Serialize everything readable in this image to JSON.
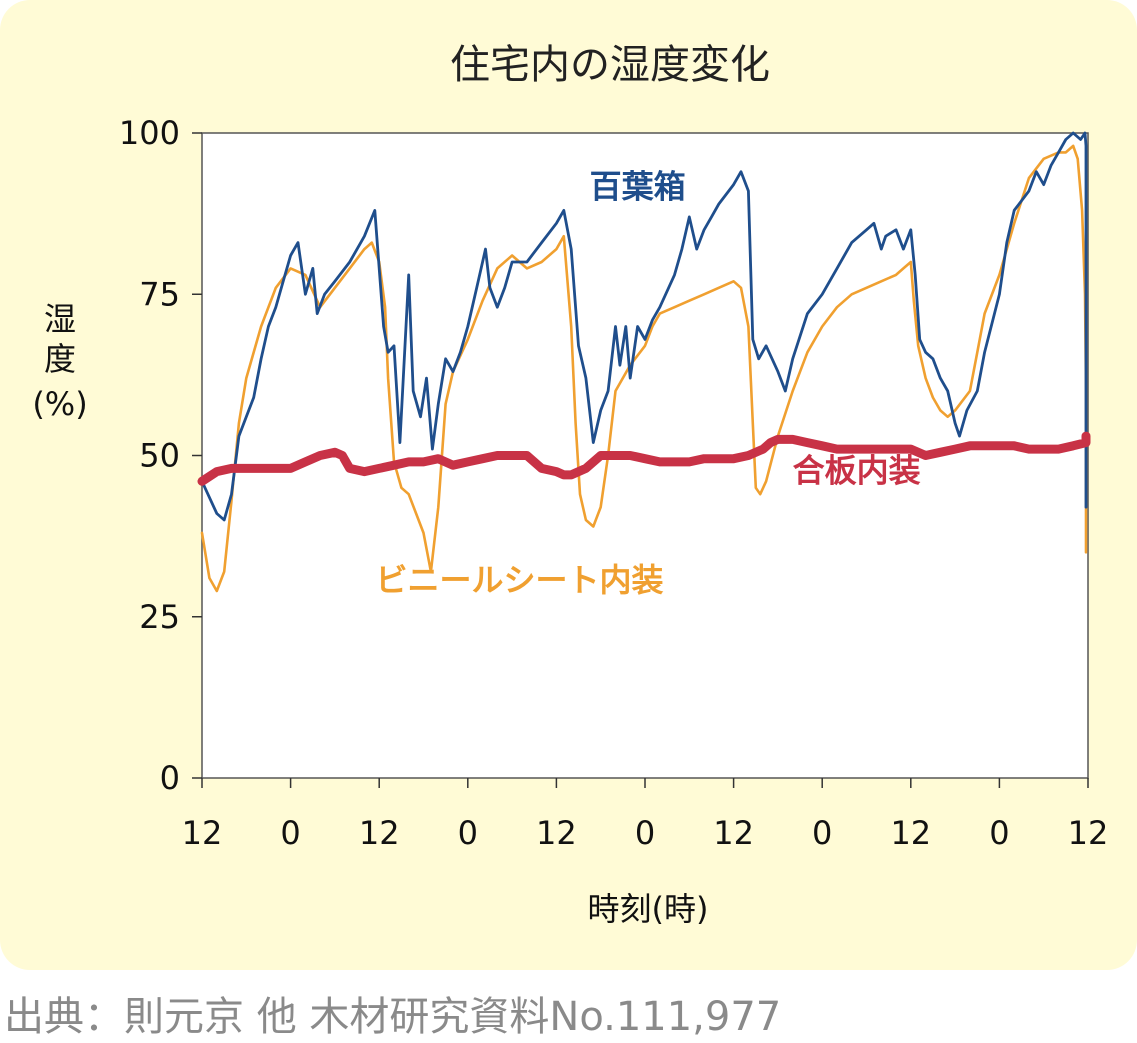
{
  "chart_data": {
    "type": "line",
    "title": "住宅内の湿度変化",
    "xlabel": "時刻(時)",
    "ylabel": [
      "湿",
      "度",
      "(%)"
    ],
    "ylim": [
      0,
      100
    ],
    "yticks": [
      0,
      25,
      50,
      75,
      100
    ],
    "xlim": [
      0,
      60
    ],
    "xticks": [
      {
        "x": 0,
        "label": "12"
      },
      {
        "x": 6,
        "label": "0"
      },
      {
        "x": 12,
        "label": "12"
      },
      {
        "x": 18,
        "label": "0"
      },
      {
        "x": 24,
        "label": "12"
      },
      {
        "x": 30,
        "label": "0"
      },
      {
        "x": 36,
        "label": "12"
      },
      {
        "x": 42,
        "label": "0"
      },
      {
        "x": 48,
        "label": "12"
      },
      {
        "x": 54,
        "label": "0"
      },
      {
        "x": 60,
        "label": "12"
      }
    ],
    "grid": false,
    "series": [
      {
        "name": "百葉箱",
        "color": "#1f4e8c",
        "label_pos": [
          29.5,
          90
        ],
        "points": [
          [
            0,
            46
          ],
          [
            1,
            41
          ],
          [
            1.5,
            40
          ],
          [
            2,
            44
          ],
          [
            2.5,
            53
          ],
          [
            3,
            56
          ],
          [
            3.5,
            59
          ],
          [
            4,
            65
          ],
          [
            4.5,
            70
          ],
          [
            5,
            73
          ],
          [
            5.5,
            77
          ],
          [
            6,
            81
          ],
          [
            6.5,
            83
          ],
          [
            7,
            75
          ],
          [
            7.5,
            79
          ],
          [
            7.8,
            72
          ],
          [
            8.3,
            75
          ],
          [
            9,
            77
          ],
          [
            10,
            80
          ],
          [
            11,
            84
          ],
          [
            11.7,
            88
          ],
          [
            12.3,
            70
          ],
          [
            12.6,
            66
          ],
          [
            13,
            67
          ],
          [
            13.4,
            52
          ],
          [
            14,
            78
          ],
          [
            14.3,
            60
          ],
          [
            14.8,
            56
          ],
          [
            15.2,
            62
          ],
          [
            15.6,
            51
          ],
          [
            16,
            58
          ],
          [
            16.5,
            65
          ],
          [
            17,
            63
          ],
          [
            17.5,
            66
          ],
          [
            18,
            70
          ],
          [
            18.6,
            76
          ],
          [
            19.2,
            82
          ],
          [
            19.5,
            76
          ],
          [
            20,
            73
          ],
          [
            20.5,
            76
          ],
          [
            21,
            80
          ],
          [
            22,
            80
          ],
          [
            23,
            83
          ],
          [
            24,
            86
          ],
          [
            24.5,
            88
          ],
          [
            25,
            82
          ],
          [
            25.5,
            67
          ],
          [
            26,
            62
          ],
          [
            26.5,
            52
          ],
          [
            27,
            57
          ],
          [
            27.5,
            60
          ],
          [
            28,
            70
          ],
          [
            28.3,
            64
          ],
          [
            28.7,
            70
          ],
          [
            29,
            62
          ],
          [
            29.5,
            70
          ],
          [
            30,
            68
          ],
          [
            30.5,
            71
          ],
          [
            31,
            73
          ],
          [
            32,
            78
          ],
          [
            32.5,
            82
          ],
          [
            33,
            87
          ],
          [
            33.5,
            82
          ],
          [
            34,
            85
          ],
          [
            34.5,
            87
          ],
          [
            35,
            89
          ],
          [
            36,
            92
          ],
          [
            36.5,
            94
          ],
          [
            37,
            91
          ],
          [
            37.3,
            68
          ],
          [
            37.7,
            65
          ],
          [
            38.2,
            67
          ],
          [
            39,
            63
          ],
          [
            39.5,
            60
          ],
          [
            40,
            65
          ],
          [
            41,
            72
          ],
          [
            42,
            75
          ],
          [
            43,
            79
          ],
          [
            44,
            83
          ],
          [
            45,
            85
          ],
          [
            45.5,
            86
          ],
          [
            46,
            82
          ],
          [
            46.3,
            84
          ],
          [
            47,
            85
          ],
          [
            47.5,
            82
          ],
          [
            48,
            85
          ],
          [
            48.3,
            78
          ],
          [
            48.6,
            68
          ],
          [
            49,
            66
          ],
          [
            49.5,
            65
          ],
          [
            50,
            62
          ],
          [
            50.5,
            60
          ],
          [
            51,
            55
          ],
          [
            51.3,
            53
          ],
          [
            51.8,
            57
          ],
          [
            52.5,
            60
          ],
          [
            53,
            66
          ],
          [
            54,
            75
          ],
          [
            54.5,
            83
          ],
          [
            55,
            88
          ],
          [
            56,
            91
          ],
          [
            56.5,
            94
          ],
          [
            57,
            92
          ],
          [
            57.5,
            95
          ],
          [
            58,
            97
          ],
          [
            58.5,
            99
          ],
          [
            59,
            100
          ],
          [
            59.5,
            99
          ],
          [
            59.8,
            100
          ],
          [
            60,
            98
          ],
          [
            60.2,
            94
          ],
          [
            60.3,
            80
          ],
          [
            60.4,
            60
          ],
          [
            60.5,
            42
          ]
        ]
      },
      {
        "name": "ビニールシート内装",
        "color": "#f0a030",
        "label_pos": [
          21.5,
          29
        ],
        "points": [
          [
            0,
            38
          ],
          [
            0.5,
            31
          ],
          [
            1,
            29
          ],
          [
            1.5,
            32
          ],
          [
            2,
            43
          ],
          [
            2.5,
            55
          ],
          [
            3,
            62
          ],
          [
            4,
            70
          ],
          [
            5,
            76
          ],
          [
            6,
            79
          ],
          [
            7,
            78
          ],
          [
            8,
            73
          ],
          [
            9,
            76
          ],
          [
            10,
            79
          ],
          [
            11,
            82
          ],
          [
            11.5,
            83
          ],
          [
            12,
            80
          ],
          [
            12.4,
            73
          ],
          [
            12.6,
            62
          ],
          [
            13,
            49
          ],
          [
            13.5,
            45
          ],
          [
            14,
            44
          ],
          [
            14.5,
            41
          ],
          [
            15,
            38
          ],
          [
            15.5,
            32
          ],
          [
            16,
            42
          ],
          [
            16.5,
            58
          ],
          [
            17,
            63
          ],
          [
            18,
            68
          ],
          [
            19,
            74
          ],
          [
            20,
            79
          ],
          [
            21,
            81
          ],
          [
            22,
            79
          ],
          [
            23,
            80
          ],
          [
            24,
            82
          ],
          [
            24.5,
            84
          ],
          [
            25,
            70
          ],
          [
            25.3,
            55
          ],
          [
            25.6,
            44
          ],
          [
            26,
            40
          ],
          [
            26.5,
            39
          ],
          [
            27,
            42
          ],
          [
            27.5,
            50
          ],
          [
            28,
            60
          ],
          [
            29,
            64
          ],
          [
            30,
            67
          ],
          [
            30.5,
            70
          ],
          [
            31,
            72
          ],
          [
            32,
            73
          ],
          [
            33,
            74
          ],
          [
            34,
            75
          ],
          [
            35,
            76
          ],
          [
            36,
            77
          ],
          [
            36.5,
            76
          ],
          [
            37,
            70
          ],
          [
            37.3,
            55
          ],
          [
            37.5,
            45
          ],
          [
            37.8,
            44
          ],
          [
            38.2,
            46
          ],
          [
            39,
            53
          ],
          [
            40,
            60
          ],
          [
            41,
            66
          ],
          [
            42,
            70
          ],
          [
            43,
            73
          ],
          [
            44,
            75
          ],
          [
            45,
            76
          ],
          [
            46,
            77
          ],
          [
            47,
            78
          ],
          [
            47.5,
            79
          ],
          [
            48,
            80
          ],
          [
            48.2,
            74
          ],
          [
            48.5,
            67
          ],
          [
            49,
            62
          ],
          [
            49.5,
            59
          ],
          [
            50,
            57
          ],
          [
            50.5,
            56
          ],
          [
            51,
            57
          ],
          [
            52,
            60
          ],
          [
            52.5,
            66
          ],
          [
            53,
            72
          ],
          [
            54,
            78
          ],
          [
            55,
            86
          ],
          [
            56,
            93
          ],
          [
            57,
            96
          ],
          [
            58,
            97
          ],
          [
            58.5,
            97
          ],
          [
            59,
            98
          ],
          [
            59.3,
            96
          ],
          [
            59.6,
            88
          ],
          [
            59.8,
            75
          ],
          [
            60,
            60
          ],
          [
            60.2,
            48
          ],
          [
            60.5,
            42
          ],
          [
            61,
            37
          ],
          [
            61.3,
            35
          ]
        ]
      },
      {
        "name": "合板内装",
        "color": "#c83246",
        "label_pos": [
          40,
          46
        ],
        "points": [
          [
            0,
            46
          ],
          [
            1,
            47.5
          ],
          [
            2,
            48
          ],
          [
            3,
            48
          ],
          [
            4,
            48
          ],
          [
            5,
            48
          ],
          [
            6,
            48
          ],
          [
            7,
            49
          ],
          [
            8,
            50
          ],
          [
            9,
            50.5
          ],
          [
            9.5,
            50
          ],
          [
            10,
            48
          ],
          [
            11,
            47.5
          ],
          [
            12,
            48
          ],
          [
            13,
            48.5
          ],
          [
            14,
            49
          ],
          [
            15,
            49
          ],
          [
            16,
            49.5
          ],
          [
            17,
            48.5
          ],
          [
            18,
            49
          ],
          [
            19,
            49.5
          ],
          [
            20,
            50
          ],
          [
            21,
            50
          ],
          [
            22,
            50
          ],
          [
            23,
            48
          ],
          [
            24,
            47.5
          ],
          [
            24.5,
            47
          ],
          [
            25,
            47
          ],
          [
            26,
            48
          ],
          [
            27,
            50
          ],
          [
            28,
            50
          ],
          [
            29,
            50
          ],
          [
            30,
            49.5
          ],
          [
            31,
            49
          ],
          [
            32,
            49
          ],
          [
            33,
            49
          ],
          [
            34,
            49.5
          ],
          [
            35,
            49.5
          ],
          [
            36,
            49.5
          ],
          [
            37,
            50
          ],
          [
            38,
            51
          ],
          [
            38.5,
            52
          ],
          [
            39,
            52.5
          ],
          [
            40,
            52.5
          ],
          [
            41,
            52
          ],
          [
            42,
            51.5
          ],
          [
            43,
            51
          ],
          [
            44,
            51
          ],
          [
            45,
            51
          ],
          [
            46,
            51
          ],
          [
            47,
            51
          ],
          [
            48,
            51
          ],
          [
            49,
            50
          ],
          [
            50,
            50.5
          ],
          [
            51,
            51
          ],
          [
            52,
            51.5
          ],
          [
            53,
            51.5
          ],
          [
            54,
            51.5
          ],
          [
            55,
            51.5
          ],
          [
            56,
            51
          ],
          [
            57,
            51
          ],
          [
            58,
            51
          ],
          [
            59,
            51.5
          ],
          [
            60,
            52
          ],
          [
            60.5,
            53
          ],
          [
            61,
            53
          ]
        ]
      }
    ]
  },
  "source_text": "出典：則元京 他 木材研究資料No.111,977"
}
